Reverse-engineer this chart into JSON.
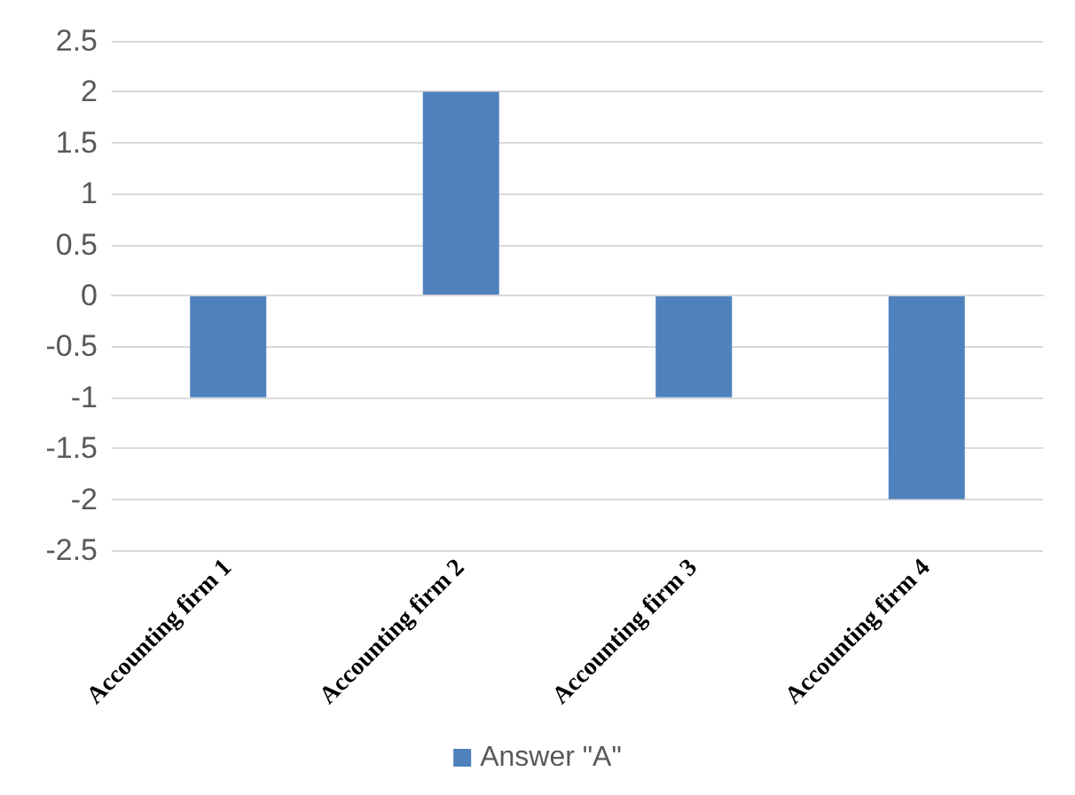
{
  "chart_data": {
    "type": "bar",
    "categories": [
      "Accounting firm 1",
      "Accounting firm 2",
      "Accounting firm 3",
      "Accounting firm 4"
    ],
    "series": [
      {
        "name": "Answer \"A\"",
        "color": "#4f81bd",
        "values": [
          -1,
          2,
          -1,
          -2
        ]
      }
    ],
    "ylim": [
      -2.5,
      2.5
    ],
    "yticks": [
      -2.5,
      -2,
      -1.5,
      -1,
      -0.5,
      0,
      0.5,
      1,
      1.5,
      2,
      2.5
    ],
    "grid": "y",
    "legend": "bottom"
  }
}
